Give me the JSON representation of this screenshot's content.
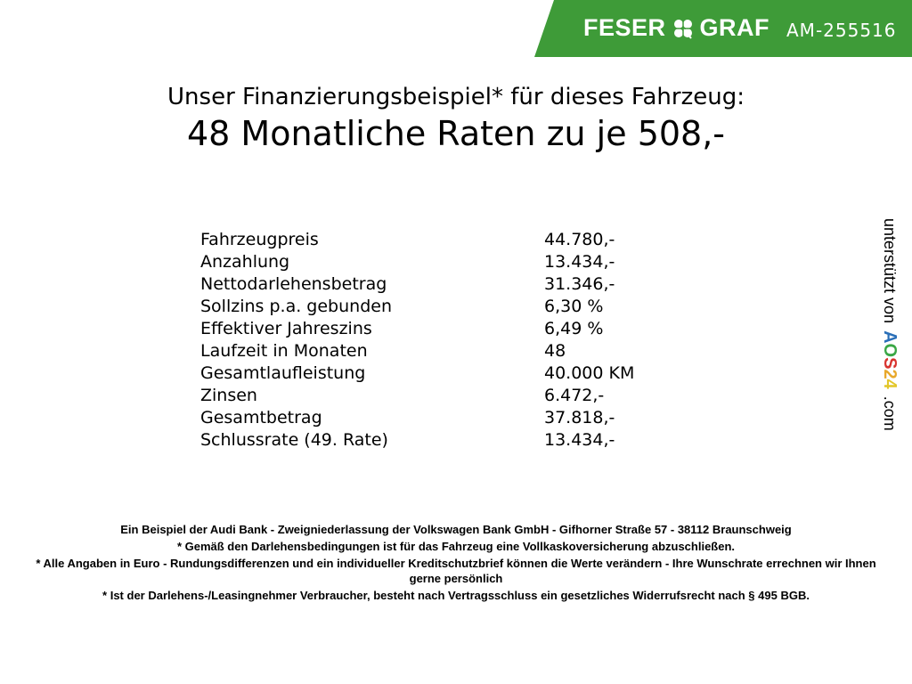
{
  "header": {
    "brand_left": "FESER",
    "brand_right": "GRAF",
    "vehicle_code": "AM-255516",
    "brand_color": "#3e9b38",
    "logo_icon": "clover-icon"
  },
  "title": {
    "line1": "Unser Finanzierungsbeispiel* für dieses Fahrzeug:",
    "line2": "48 Monatliche Raten zu je 508,-"
  },
  "table": [
    {
      "label": "Fahrzeugpreis",
      "value": "44.780,-"
    },
    {
      "label": "Anzahlung",
      "value": "13.434,-"
    },
    {
      "label": "Nettodarlehensbetrag",
      "value": "31.346,-"
    },
    {
      "label": "Sollzins p.a. gebunden",
      "value": "6,30 %"
    },
    {
      "label": "Effektiver Jahreszins",
      "value": "6,49 %"
    },
    {
      "label": "Laufzeit in Monaten",
      "value": "48"
    },
    {
      "label": "Gesamtlaufleistung",
      "value": "40.000 KM"
    },
    {
      "label": "Zinsen",
      "value": "6.472,-"
    },
    {
      "label": "Gesamtbetrag",
      "value": "37.818,-"
    },
    {
      "label": "Schlussrate (49. Rate)",
      "value": "13.434,-"
    }
  ],
  "side": {
    "text": "unterstützt von",
    "logo": "AOS24",
    "suffix": ".com"
  },
  "footer": [
    "Ein Beispiel der Audi Bank - Zweigniederlassung der Volkswagen Bank GmbH - Gifhorner Straße 57 - 38112 Braunschweig",
    "* Gemäß den Darlehensbedingungen ist für das Fahrzeug eine Vollkaskoversicherung abzuschließen.",
    "* Alle Angaben in Euro - Rundungsdifferenzen und ein individueller Kreditschutzbrief können die Werte verändern - Ihre Wunschrate errechnen wir Ihnen gerne persönlich",
    "* Ist der Darlehens-/Leasingnehmer Verbraucher, besteht nach Vertragsschluss ein gesetzliches Widerrufsrecht nach § 495 BGB."
  ]
}
